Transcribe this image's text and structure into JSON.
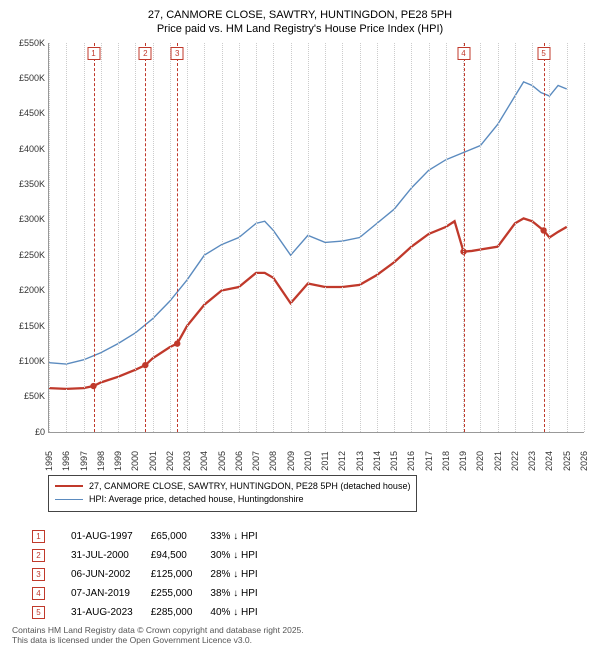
{
  "title": {
    "line1": "27, CANMORE CLOSE, SAWTRY, HUNTINGDON, PE28 5PH",
    "line2": "Price paid vs. HM Land Registry's House Price Index (HPI)"
  },
  "chart": {
    "type": "line",
    "background_color": "#ffffff",
    "grid_color": "#cccccc",
    "marker_grid_color": "#c0392b",
    "xlim": [
      1995,
      2026
    ],
    "ylim": [
      0,
      550000
    ],
    "ytick_step": 50000,
    "y_ticks": [
      "£0",
      "£50K",
      "£100K",
      "£150K",
      "£200K",
      "£250K",
      "£300K",
      "£350K",
      "£400K",
      "£450K",
      "£500K",
      "£550K"
    ],
    "x_ticks": [
      1995,
      1996,
      1997,
      1998,
      1999,
      2000,
      2001,
      2002,
      2003,
      2004,
      2005,
      2006,
      2007,
      2008,
      2009,
      2010,
      2011,
      2012,
      2013,
      2014,
      2015,
      2016,
      2017,
      2018,
      2019,
      2020,
      2021,
      2022,
      2023,
      2024,
      2025,
      2026
    ],
    "series_red": {
      "label": "27, CANMORE CLOSE, SAWTRY, HUNTINGDON, PE28 5PH (detached house)",
      "color": "#c0392b",
      "line_width": 2.3,
      "points": [
        [
          1995.0,
          62000
        ],
        [
          1996.0,
          61000
        ],
        [
          1997.0,
          62000
        ],
        [
          1997.58,
          65000
        ],
        [
          1998.0,
          70000
        ],
        [
          1999.0,
          78000
        ],
        [
          2000.0,
          88000
        ],
        [
          2000.58,
          94500
        ],
        [
          2001.0,
          104000
        ],
        [
          2002.0,
          120000
        ],
        [
          2002.43,
          125000
        ],
        [
          2003.0,
          150000
        ],
        [
          2004.0,
          180000
        ],
        [
          2005.0,
          200000
        ],
        [
          2006.0,
          205000
        ],
        [
          2007.0,
          225000
        ],
        [
          2007.5,
          225000
        ],
        [
          2008.0,
          218000
        ],
        [
          2009.0,
          182000
        ],
        [
          2010.0,
          210000
        ],
        [
          2011.0,
          205000
        ],
        [
          2012.0,
          205000
        ],
        [
          2013.0,
          208000
        ],
        [
          2014.0,
          222000
        ],
        [
          2015.0,
          240000
        ],
        [
          2016.0,
          262000
        ],
        [
          2017.0,
          280000
        ],
        [
          2018.0,
          290000
        ],
        [
          2018.5,
          298000
        ],
        [
          2019.02,
          255000
        ],
        [
          2019.5,
          256000
        ],
        [
          2020.0,
          258000
        ],
        [
          2021.0,
          262000
        ],
        [
          2022.0,
          295000
        ],
        [
          2022.5,
          302000
        ],
        [
          2023.0,
          298000
        ],
        [
          2023.66,
          285000
        ],
        [
          2024.0,
          275000
        ],
        [
          2024.5,
          283000
        ],
        [
          2025.0,
          290000
        ]
      ]
    },
    "series_blue": {
      "label": "HPI: Average price, detached house, Huntingdonshire",
      "color": "#5b8bbf",
      "line_width": 1.4,
      "points": [
        [
          1995.0,
          98000
        ],
        [
          1996.0,
          96000
        ],
        [
          1997.0,
          102000
        ],
        [
          1998.0,
          112000
        ],
        [
          1999.0,
          125000
        ],
        [
          2000.0,
          140000
        ],
        [
          2001.0,
          160000
        ],
        [
          2002.0,
          185000
        ],
        [
          2003.0,
          215000
        ],
        [
          2004.0,
          250000
        ],
        [
          2005.0,
          265000
        ],
        [
          2006.0,
          275000
        ],
        [
          2007.0,
          295000
        ],
        [
          2007.5,
          298000
        ],
        [
          2008.0,
          285000
        ],
        [
          2009.0,
          250000
        ],
        [
          2010.0,
          278000
        ],
        [
          2011.0,
          268000
        ],
        [
          2012.0,
          270000
        ],
        [
          2013.0,
          275000
        ],
        [
          2014.0,
          295000
        ],
        [
          2015.0,
          315000
        ],
        [
          2016.0,
          345000
        ],
        [
          2017.0,
          370000
        ],
        [
          2018.0,
          385000
        ],
        [
          2019.0,
          395000
        ],
        [
          2020.0,
          405000
        ],
        [
          2021.0,
          435000
        ],
        [
          2022.0,
          475000
        ],
        [
          2022.5,
          495000
        ],
        [
          2023.0,
          490000
        ],
        [
          2023.5,
          480000
        ],
        [
          2024.0,
          475000
        ],
        [
          2024.5,
          490000
        ],
        [
          2025.0,
          485000
        ]
      ]
    },
    "sale_markers": [
      {
        "n": "1",
        "year": 1997.58,
        "price": 65000
      },
      {
        "n": "2",
        "year": 2000.58,
        "price": 94500
      },
      {
        "n": "3",
        "year": 2002.43,
        "price": 125000
      },
      {
        "n": "4",
        "year": 2019.02,
        "price": 255000
      },
      {
        "n": "5",
        "year": 2023.66,
        "price": 285000
      }
    ]
  },
  "legend": {
    "red_label": "27, CANMORE CLOSE, SAWTRY, HUNTINGDON, PE28 5PH (detached house)",
    "blue_label": "HPI: Average price, detached house, Huntingdonshire"
  },
  "sales": [
    {
      "n": "1",
      "date": "01-AUG-1997",
      "price": "£65,000",
      "pct": "33%",
      "dir": "↓",
      "tag": "HPI"
    },
    {
      "n": "2",
      "date": "31-JUL-2000",
      "price": "£94,500",
      "pct": "30%",
      "dir": "↓",
      "tag": "HPI"
    },
    {
      "n": "3",
      "date": "06-JUN-2002",
      "price": "£125,000",
      "pct": "28%",
      "dir": "↓",
      "tag": "HPI"
    },
    {
      "n": "4",
      "date": "07-JAN-2019",
      "price": "£255,000",
      "pct": "38%",
      "dir": "↓",
      "tag": "HPI"
    },
    {
      "n": "5",
      "date": "31-AUG-2023",
      "price": "£285,000",
      "pct": "40%",
      "dir": "↓",
      "tag": "HPI"
    }
  ],
  "footer": {
    "line1": "Contains HM Land Registry data © Crown copyright and database right 2025.",
    "line2": "This data is licensed under the Open Government Licence v3.0."
  }
}
